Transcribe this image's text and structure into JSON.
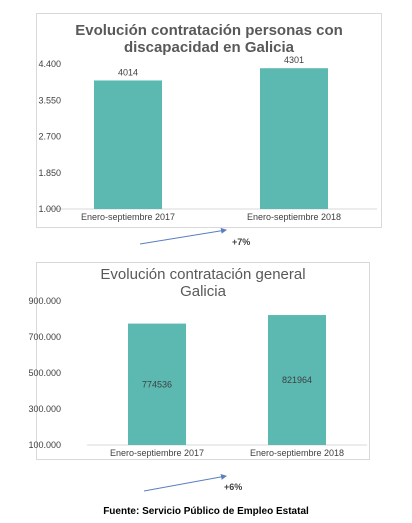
{
  "chart_data": [
    {
      "type": "bar",
      "title_lines": [
        "Evolución contratación personas con",
        "discapacidad en Galicia"
      ],
      "categories": [
        "Enero-septiembre 2017",
        "Enero-septiembre 2018"
      ],
      "values": [
        4014,
        4301
      ],
      "data_labels": [
        "4014",
        "4301"
      ],
      "ylim": [
        1000,
        4400
      ],
      "yticks": [
        1000,
        1850,
        2700,
        3550,
        4400
      ],
      "ytick_labels": [
        "1.000",
        "1.850",
        "2.700",
        "3.550",
        "4.400"
      ],
      "bar_color": "#5bb9b1",
      "grid": false,
      "label_position": "above"
    },
    {
      "type": "bar",
      "title_lines": [
        "Evolución contratación general",
        "Galicia"
      ],
      "categories": [
        "Enero-septiembre 2017",
        "Enero-septiembre 2018"
      ],
      "values": [
        774536,
        821964
      ],
      "data_labels": [
        "774536",
        "821964"
      ],
      "ylim": [
        100000,
        900000
      ],
      "yticks": [
        100000,
        300000,
        500000,
        700000,
        900000
      ],
      "ytick_labels": [
        "100.000",
        "300.000",
        "500.000",
        "700.000",
        "900.000"
      ],
      "bar_color": "#5bb9b1",
      "grid": false,
      "label_position": "inside"
    }
  ],
  "growth": [
    "+7%",
    "+6%"
  ],
  "arrow_color": "#5a7fc0",
  "source": "Fuente: Servicio Público de Empleo Estatal"
}
